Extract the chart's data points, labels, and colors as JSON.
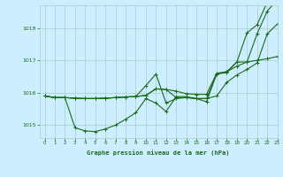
{
  "title": "Graphe pression niveau de la mer (hPa)",
  "bg_color": "#cceeff",
  "grid_color": "#aacccc",
  "line_color": "#1a6b1a",
  "xlim": [
    -0.5,
    23
  ],
  "ylim": [
    1014.6,
    1018.7
  ],
  "yticks": [
    1015,
    1016,
    1017,
    1018
  ],
  "xticks": [
    0,
    1,
    2,
    3,
    4,
    5,
    6,
    7,
    8,
    9,
    10,
    11,
    12,
    13,
    14,
    15,
    16,
    17,
    18,
    19,
    20,
    21,
    22,
    23
  ],
  "series1": [
    1015.9,
    1015.85,
    1015.85,
    1015.83,
    1015.82,
    1015.82,
    1015.83,
    1015.85,
    1015.87,
    1015.88,
    1015.92,
    1016.12,
    1016.1,
    1016.05,
    1015.97,
    1015.95,
    1015.95,
    1016.6,
    1016.65,
    1016.95,
    1017.85,
    1018.1,
    1018.8,
    1018.88
  ],
  "series2": [
    1015.9,
    1015.85,
    1015.85,
    1014.92,
    1014.82,
    1014.8,
    1014.88,
    1015.0,
    1015.18,
    1015.38,
    1015.82,
    1015.68,
    1015.42,
    1015.88,
    1015.88,
    1015.82,
    1015.82,
    1015.9,
    1016.32,
    1016.55,
    1016.72,
    1016.92,
    1017.82,
    1018.12
  ],
  "series3": [
    1015.9,
    1015.85,
    1015.85,
    1015.83,
    1015.82,
    1015.82,
    1015.83,
    1015.85,
    1015.87,
    1015.88,
    1016.22,
    1016.58,
    1015.68,
    1015.82,
    1015.85,
    1015.82,
    1015.72,
    1016.58,
    1016.65,
    1016.82,
    1016.95,
    1017.82,
    1018.52,
    1018.88
  ],
  "series4": [
    1015.9,
    1015.85,
    1015.85,
    1015.83,
    1015.82,
    1015.82,
    1015.83,
    1015.85,
    1015.87,
    1015.88,
    1015.92,
    1016.12,
    1016.1,
    1015.85,
    1015.85,
    1015.82,
    1015.82,
    1016.58,
    1016.62,
    1016.95,
    1016.95,
    1017.0,
    1017.05,
    1017.12
  ]
}
